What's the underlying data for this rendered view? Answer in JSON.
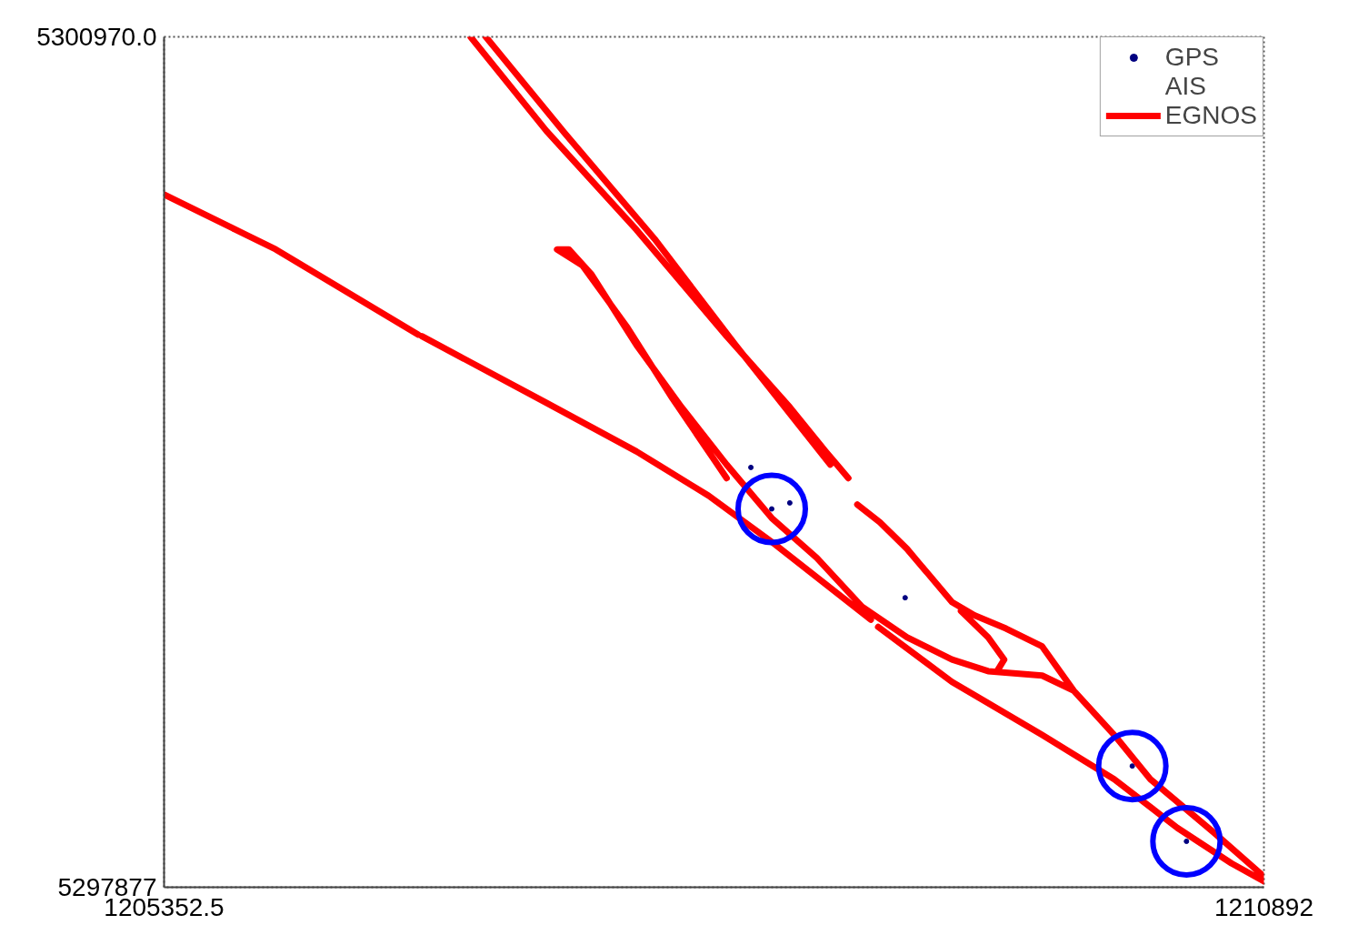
{
  "chart_data": {
    "type": "line",
    "xlim": [
      1205352.5,
      1210892
    ],
    "ylim": [
      5297877,
      5300970
    ],
    "xticks": [
      1205352.5,
      1210892
    ],
    "yticks": [
      5297877,
      {
        "value": 5300970,
        "label": "5300970.0"
      }
    ],
    "legend": "top right",
    "series": [
      {
        "name": "GPS",
        "type": "scatter",
        "marker": "circle",
        "color": "#000080",
        "x": [
          1208413,
          1208504,
          1210502,
          1208308,
          1209085,
          1210229
        ],
        "values": [
          5299253,
          5299275,
          5298044,
          5299404,
          5298930,
          5298318
        ]
      },
      {
        "name": "AIS",
        "type": "scatter",
        "marker": "none",
        "x": [
          null
        ],
        "values": [
          null
        ]
      },
      {
        "name": "EGNOS",
        "line_style": "solid",
        "color": "#ff0000",
        "x": [
          1205353,
          1205915,
          1206633,
          null,
          1206651,
          1207278,
          1207732,
          1208095,
          1208413,
          1208912,
          null,
          1208949,
          1209321,
          1209775,
          1210138,
          1210456,
          1210729,
          1210892,
          null,
          1206896,
          1207278,
          1207732,
          1208186,
          1208504,
          1208685,
          1208799,
          null,
          1208844,
          1208958,
          1209094,
          1209321,
          1209434,
          1209593,
          1209775,
          1209934,
          1210138,
          1210320,
          1210638,
          1210892,
          null,
          1206973,
          1207368,
          1207823,
          1208231,
          1208549,
          1208708,
          null,
          1208186,
          1207913,
          1207686,
          1207459,
          1207332,
          1207391,
          1207505,
          1207732,
          1207959,
          1208186,
          1208413,
          1208640,
          1208867,
          1209094,
          1209321,
          1209503,
          1209775,
          1209934,
          null,
          1209366,
          1209503,
          1209584,
          1209548
        ],
        "values": [
          5300396,
          5300197,
          5299887,
          null,
          5299881,
          5299639,
          5299462,
          5299301,
          5299133,
          5298850,
          null,
          5298824,
          5298624,
          5298431,
          5298270,
          5298093,
          5297964,
          5297899,
          null,
          5300970,
          5300628,
          5300268,
          5299881,
          5299623,
          5299462,
          5299365,
          null,
          5299269,
          5299204,
          5299108,
          5298914,
          5298866,
          5298818,
          5298753,
          5298592,
          5298431,
          5298270,
          5298077,
          5297916,
          null,
          5300970,
          5300622,
          5300235,
          5299849,
          5299559,
          5299414,
          null,
          5299365,
          5299655,
          5299913,
          5300139,
          5300197,
          5300197,
          5300106,
          5299849,
          5299623,
          5299414,
          5299220,
          5299075,
          5298898,
          5298786,
          5298705,
          5298663,
          5298647,
          5298592,
          null,
          5298882,
          5298786,
          5298705,
          5298663
        ]
      }
    ]
  }
}
